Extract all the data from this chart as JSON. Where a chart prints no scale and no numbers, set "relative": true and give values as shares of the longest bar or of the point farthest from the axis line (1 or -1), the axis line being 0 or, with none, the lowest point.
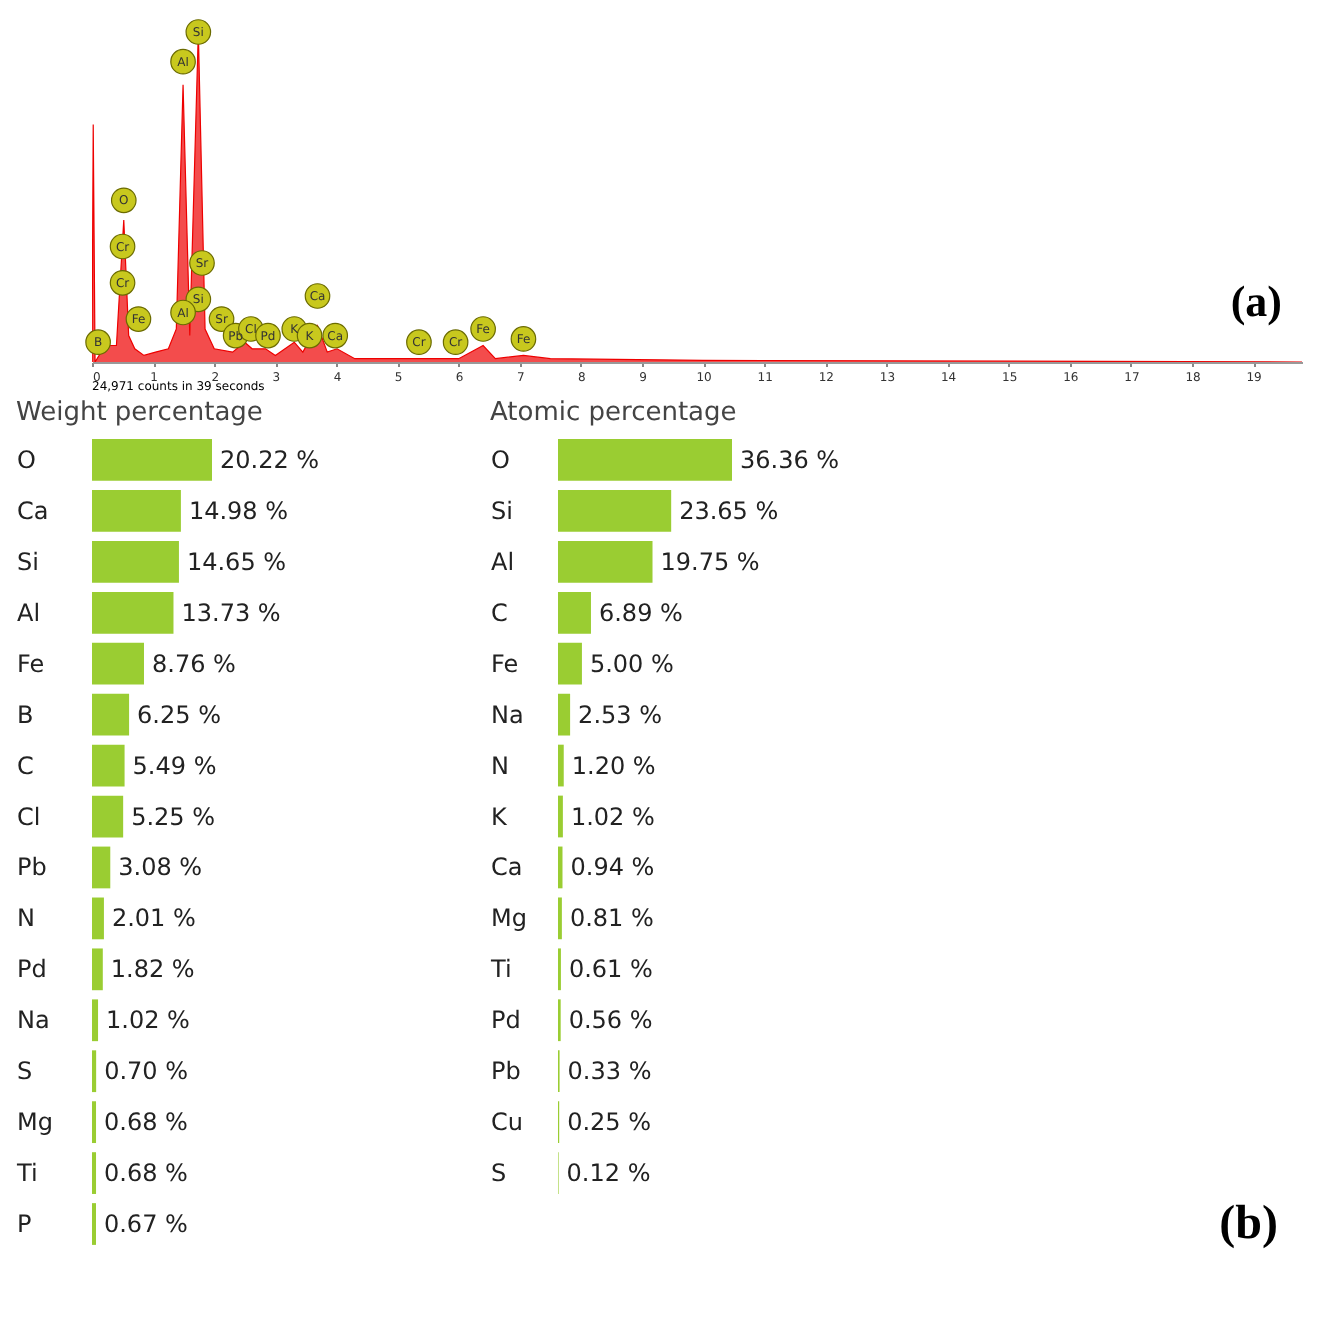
{
  "chart_data": [
    {
      "type": "area",
      "relative": true,
      "xlim": [
        0,
        19.8
      ],
      "xticks": [
        0,
        1,
        2,
        3,
        4,
        5,
        6,
        7,
        8,
        9,
        10,
        11,
        12,
        13,
        14,
        15,
        16,
        17,
        18,
        19
      ],
      "grid": false,
      "x": [
        0,
        0.02,
        0.05,
        0.15,
        0.28,
        0.4,
        0.52,
        0.6,
        0.7,
        0.85,
        1.04,
        1.25,
        1.38,
        1.49,
        1.6,
        1.74,
        1.85,
        2.0,
        2.3,
        2.5,
        2.62,
        2.84,
        3.0,
        3.31,
        3.45,
        3.69,
        3.85,
        4.01,
        4.3,
        5.0,
        5.41,
        6.0,
        6.4,
        6.6,
        7.06,
        7.5,
        10,
        19.8
      ],
      "series": [
        {
          "color": "#ee0000",
          "values": [
            0,
            0.72,
            0,
            0.03,
            0.05,
            0.05,
            0.43,
            0.08,
            0.04,
            0.02,
            0.03,
            0.04,
            0.1,
            0.84,
            0.08,
            1.0,
            0.1,
            0.04,
            0.03,
            0.06,
            0.04,
            0.04,
            0.02,
            0.06,
            0.03,
            0.11,
            0.03,
            0.04,
            0.01,
            0.01,
            0.01,
            0.01,
            0.05,
            0.01,
            0.02,
            0.01,
            0.005,
            0
          ]
        }
      ],
      "annotations": [
        "24,971 counts in 39 seconds",
        "(a)",
        {
          "text": "Si",
          "x": 1.74,
          "y": 1.0
        },
        {
          "text": "Al",
          "x": 1.49,
          "y": 0.91
        },
        {
          "text": "O",
          "x": 0.52,
          "y": 0.49
        },
        {
          "text": "Cr",
          "x": 0.5,
          "y": 0.35
        },
        {
          "text": "Cr",
          "x": 0.5,
          "y": 0.24
        },
        {
          "text": "Sr",
          "x": 1.8,
          "y": 0.3
        },
        {
          "text": "Si",
          "x": 1.74,
          "y": 0.19
        },
        {
          "text": "Al",
          "x": 1.49,
          "y": 0.15
        },
        {
          "text": "Sr",
          "x": 2.12,
          "y": 0.13
        },
        {
          "text": "B",
          "x": 0.1,
          "y": 0.06
        },
        {
          "text": "Fe",
          "x": 0.76,
          "y": 0.13
        },
        {
          "text": "Pb",
          "x": 2.35,
          "y": 0.08
        },
        {
          "text": "Cl",
          "x": 2.6,
          "y": 0.1
        },
        {
          "text": "Pd",
          "x": 2.88,
          "y": 0.08
        },
        {
          "text": "K",
          "x": 3.31,
          "y": 0.1
        },
        {
          "text": "K",
          "x": 3.56,
          "y": 0.08
        },
        {
          "text": "Ca",
          "x": 3.69,
          "y": 0.2
        },
        {
          "text": "Ca",
          "x": 3.98,
          "y": 0.08
        },
        {
          "text": "Cr",
          "x": 5.35,
          "y": 0.06
        },
        {
          "text": "Cr",
          "x": 5.95,
          "y": 0.06
        },
        {
          "text": "Fe",
          "x": 6.4,
          "y": 0.1
        },
        {
          "text": "Fe",
          "x": 7.06,
          "y": 0.07
        }
      ]
    },
    {
      "type": "bar",
      "orientation": "horizontal",
      "title": "Weight percentage",
      "color": "#9acd32",
      "categories": [
        "O",
        "Ca",
        "Si",
        "Al",
        "Fe",
        "B",
        "C",
        "Cl",
        "Pb",
        "N",
        "Pd",
        "Na",
        "S",
        "Mg",
        "Ti",
        "P"
      ],
      "values": [
        20.22,
        14.98,
        14.65,
        13.73,
        8.76,
        6.25,
        5.49,
        5.25,
        3.08,
        2.01,
        1.82,
        1.02,
        0.7,
        0.68,
        0.68,
        0.67
      ],
      "value_labels": [
        "20.22 %",
        "14.98 %",
        "14.65 %",
        "13.73 %",
        "8.76 %",
        "6.25 %",
        "5.49 %",
        "5.25 %",
        "3.08 %",
        "2.01 %",
        "1.82 %",
        "1.02 %",
        "0.70 %",
        "0.68 %",
        "0.68 %",
        "0.67 %"
      ]
    },
    {
      "type": "bar",
      "orientation": "horizontal",
      "title": "Atomic percentage",
      "color": "#9acd32",
      "categories": [
        "O",
        "Si",
        "Al",
        "C",
        "Fe",
        "Na",
        "N",
        "K",
        "Ca",
        "Mg",
        "Ti",
        "Pd",
        "Pb",
        "Cu",
        "S"
      ],
      "values": [
        36.36,
        23.65,
        19.75,
        6.89,
        5.0,
        2.53,
        1.2,
        1.02,
        0.94,
        0.81,
        0.61,
        0.56,
        0.33,
        0.25,
        0.12
      ],
      "value_labels": [
        "36.36 %",
        "23.65 %",
        "19.75 %",
        "6.89 %",
        "5.00 %",
        "2.53 %",
        "1.20 %",
        "1.02 %",
        "0.94 %",
        "0.81 %",
        "0.61 %",
        "0.56 %",
        "0.33 %",
        "0.25 %",
        "0.12 %"
      ],
      "annotations": [
        "(b)"
      ]
    }
  ]
}
